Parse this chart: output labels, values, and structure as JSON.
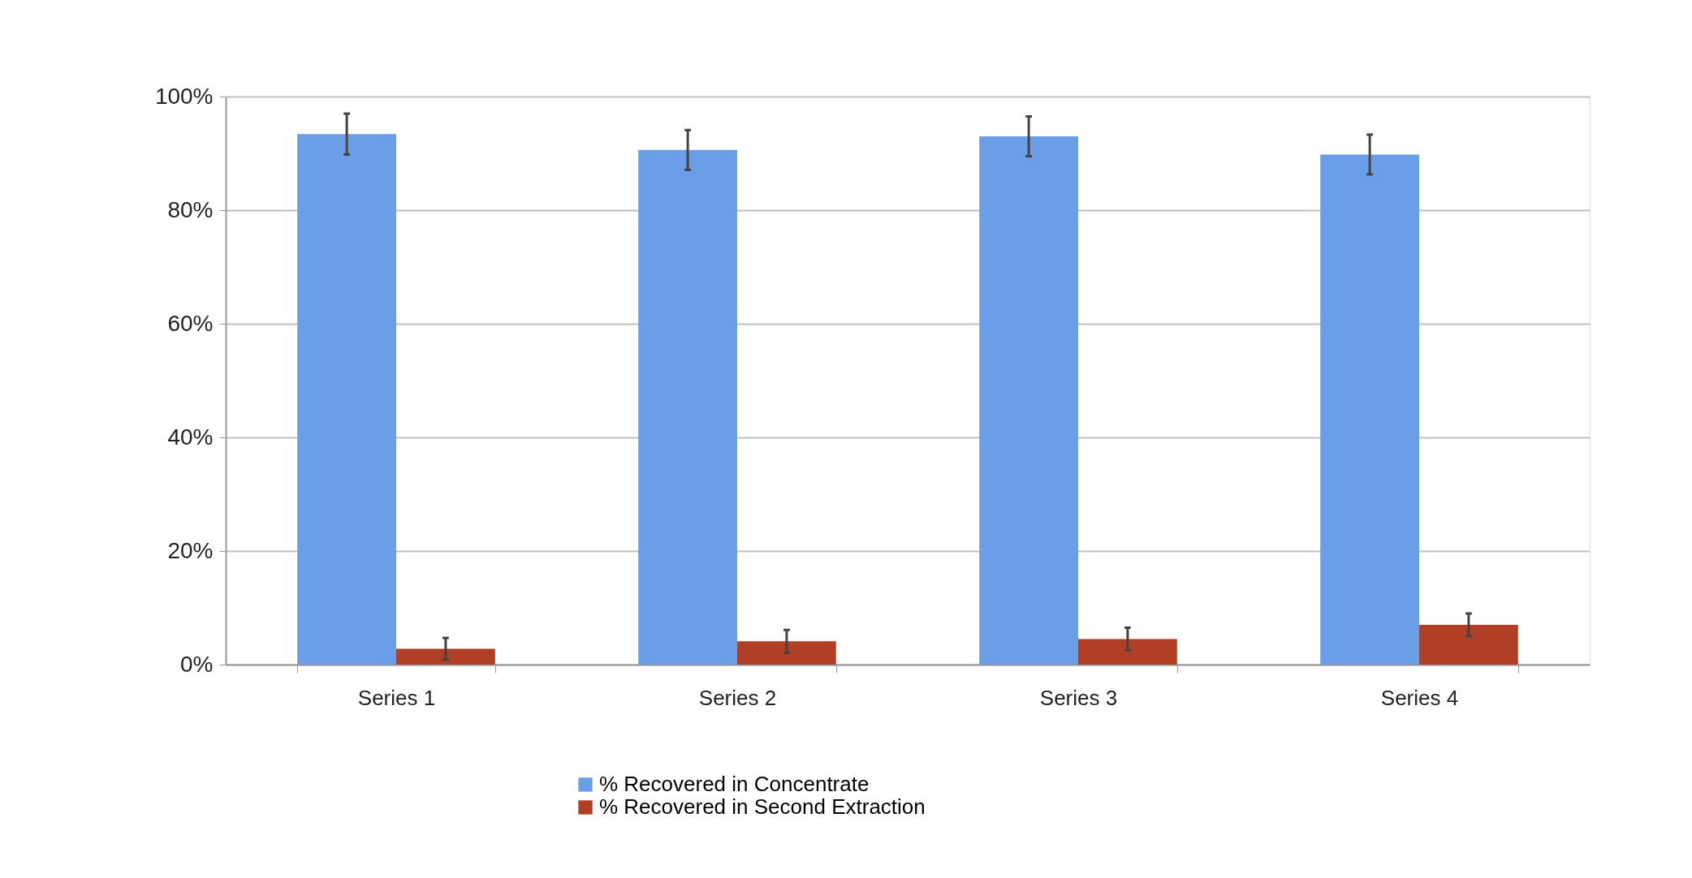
{
  "chart_data": {
    "type": "bar",
    "categories": [
      "Series 1",
      "Series 2",
      "Series 3",
      "Series 4"
    ],
    "series": [
      {
        "name": "% Recovered in Concentrate",
        "color": "#6a9ee6",
        "values": [
          93.4,
          90.6,
          93.0,
          89.8
        ],
        "errors": [
          3.6,
          3.5,
          3.5,
          3.5
        ]
      },
      {
        "name": "% Recovered in Second Extraction",
        "color": "#b13f26",
        "values": [
          2.8,
          4.1,
          4.5,
          7.0
        ],
        "errors": [
          1.9,
          2.0,
          2.0,
          2.0
        ]
      }
    ],
    "ylim": [
      0,
      100
    ],
    "yticks": [
      {
        "value": 0,
        "label": "0%"
      },
      {
        "value": 20,
        "label": "20%"
      },
      {
        "value": 40,
        "label": "40%"
      },
      {
        "value": 60,
        "label": "60%"
      },
      {
        "value": 80,
        "label": "80%"
      },
      {
        "value": 100,
        "label": "100%"
      }
    ],
    "grid": "y",
    "legend": "bottom"
  }
}
